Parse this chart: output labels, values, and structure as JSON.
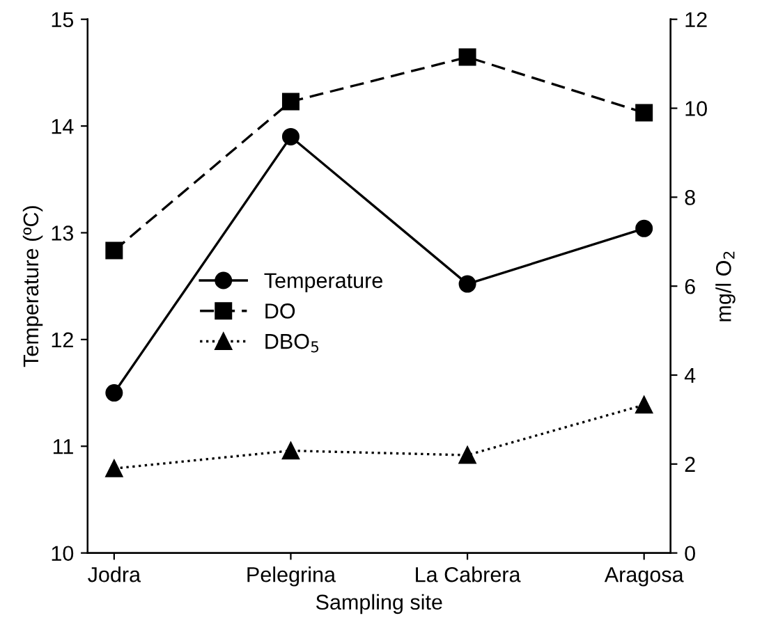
{
  "chart_data": {
    "type": "line",
    "xlabel": "Sampling site",
    "ylabel": "Temperature (ºC)",
    "y2label": "mg/l O$_{2}$",
    "categories": [
      "Jodra",
      "Pelegrina",
      "La Cabrera",
      "Aragosa"
    ],
    "series": [
      {
        "name": "Temperature",
        "color": "#000000",
        "values": [
          11.5,
          13.9,
          12.52,
          13.04
        ],
        "marker": "circle",
        "line_style": "solid"
      },
      {
        "name": "DO",
        "color": "#000000",
        "values": [
          6.8,
          10.15,
          11.15,
          9.9
        ],
        "marker": "square",
        "line_style": "dashed",
        "axis": "y2"
      },
      {
        "name": "DBO$_{5}$",
        "color": "#000000",
        "values": [
          1.9,
          2.3,
          2.2,
          3.33
        ],
        "marker": "triangle",
        "line_style": "dotted",
        "axis": "y2"
      }
    ],
    "ylim": [
      10,
      15
    ],
    "yticks": [
      10,
      11,
      12,
      13,
      14,
      15
    ],
    "y2lim": [
      0,
      12
    ],
    "y2ticks": [
      0,
      2,
      4,
      6,
      8,
      10,
      12
    ],
    "grid": false,
    "legend": "center"
  }
}
